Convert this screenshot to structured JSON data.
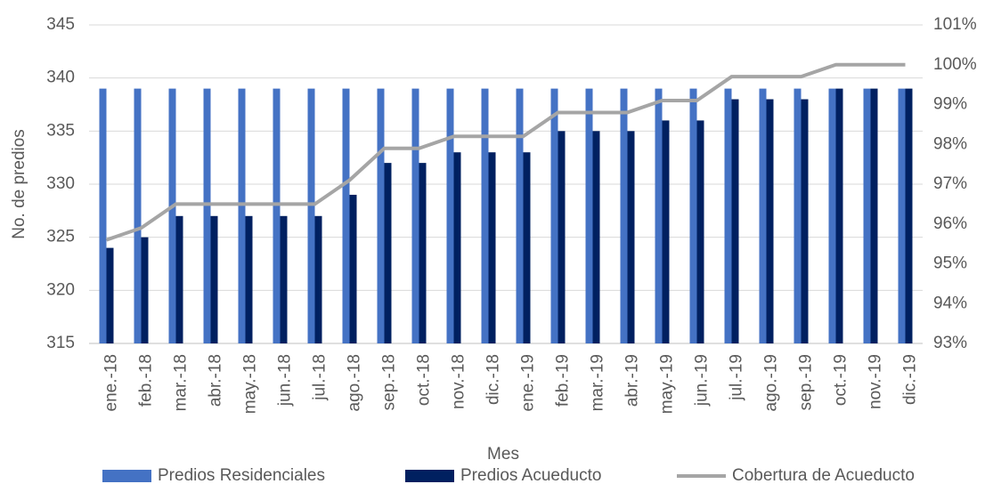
{
  "chart_data": {
    "type": "bar",
    "categories": [
      "ene.-18",
      "feb.-18",
      "mar.-18",
      "abr.-18",
      "may.-18",
      "jun.-18",
      "jul.-18",
      "ago.-18",
      "sep.-18",
      "oct.-18",
      "nov.-18",
      "dic.-18",
      "ene.-19",
      "feb.-19",
      "mar.-19",
      "abr.-19",
      "may.-19",
      "jun.-19",
      "jul.-19",
      "ago.-19",
      "sep.-19",
      "oct.-19",
      "nov.-19",
      "dic.-19"
    ],
    "series": [
      {
        "name": "Predios Residenciales",
        "color": "#4472c4",
        "type": "bar",
        "values": [
          339,
          339,
          339,
          339,
          339,
          339,
          339,
          339,
          339,
          339,
          339,
          339,
          339,
          339,
          339,
          339,
          339,
          339,
          339,
          339,
          339,
          339,
          339,
          339
        ]
      },
      {
        "name": "Predios Acueducto",
        "color": "#002060",
        "type": "bar",
        "values": [
          324,
          325,
          327,
          327,
          327,
          327,
          327,
          329,
          332,
          332,
          333,
          333,
          333,
          335,
          335,
          335,
          336,
          336,
          338,
          338,
          338,
          339,
          339,
          339
        ]
      },
      {
        "name": "Cobertura de Acueducto",
        "color": "#a5a5a5",
        "type": "line",
        "axis": "y2",
        "values": [
          95.6,
          95.9,
          96.5,
          96.5,
          96.5,
          96.5,
          96.5,
          97.1,
          97.9,
          97.9,
          98.2,
          98.2,
          98.2,
          98.8,
          98.8,
          98.8,
          99.1,
          99.1,
          99.7,
          99.7,
          99.7,
          100,
          100,
          100
        ]
      }
    ],
    "x_label": "Mes",
    "y_label": "No. de predios",
    "ylim": [
      315,
      345
    ],
    "yticks": [
      315,
      320,
      325,
      330,
      335,
      340,
      345
    ],
    "y2lim": [
      93,
      101
    ],
    "y2ticks": [
      {
        "value": 93,
        "label": "93%"
      },
      {
        "value": 94,
        "label": "94%"
      },
      {
        "value": 95,
        "label": "95%"
      },
      {
        "value": 96,
        "label": "96%"
      },
      {
        "value": 97,
        "label": "97%"
      },
      {
        "value": 98,
        "label": "98%"
      },
      {
        "value": 99,
        "label": "99%"
      },
      {
        "value": 100,
        "label": "100%"
      },
      {
        "value": 101,
        "label": "101%"
      }
    ],
    "grid": true,
    "legend": "bottom"
  }
}
